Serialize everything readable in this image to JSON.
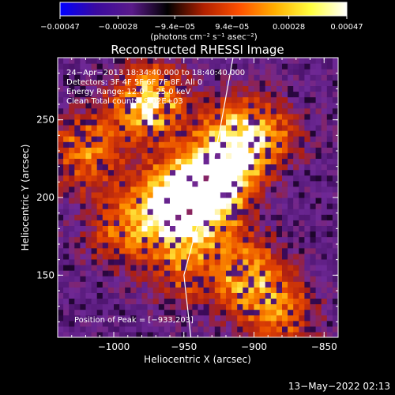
{
  "chart_data": {
    "type": "heatmap",
    "title": "Reconstructed RHESSI Image",
    "xlabel": "Heliocentric X (arcsec)",
    "ylabel": "Heliocentric Y (arcsec)",
    "xlim": [
      -1040,
      -840
    ],
    "ylim": [
      110,
      290
    ],
    "x_ticks": [
      -1000,
      -950,
      -900,
      -850
    ],
    "x_tick_labels": [
      "−1000",
      "−950",
      "−900",
      "−850"
    ],
    "y_ticks": [
      150,
      200,
      250
    ],
    "y_tick_labels": [
      "150",
      "200",
      "250"
    ],
    "colorbar": {
      "range": [
        -0.00047,
        0.00047
      ],
      "ticks": [
        -0.00047,
        -0.00028,
        -9.4e-05,
        9.4e-05,
        0.00028,
        0.00047
      ],
      "tick_labels": [
        "−0.00047",
        "−0.00028",
        "−9.4e−05",
        "9.4e−05",
        "0.00028",
        "0.00047"
      ],
      "unit_label": "(photons cm⁻² s⁻¹ asec⁻²)",
      "colors": [
        "#0000ff",
        "#3a0aa0",
        "#5a1a8a",
        "#000000",
        "#b02000",
        "#ff5000",
        "#ffb000",
        "#ffff40",
        "#ffffff"
      ]
    },
    "annotations": {
      "time": "24−Apr−2013 18:34:40.000 to 18:40:40.000",
      "detectors": "Detectors: 3F 4F 5F 6F 7F 8F, All 0",
      "energy": "Energy Range: 12.0 − 25.0 keV",
      "clean": "Clean      Total counts: 9.02E+03",
      "peak": "Position of Peak = [−933,203]"
    },
    "peak_position": [
      -933,
      203
    ],
    "sources": [
      {
        "x": -933,
        "y": 203,
        "intensity": 1.0
      },
      {
        "x": -975,
        "y": 260,
        "intensity": 0.7
      },
      {
        "x": -915,
        "y": 235,
        "intensity": 0.65
      },
      {
        "x": -960,
        "y": 195,
        "intensity": 0.7
      },
      {
        "x": -905,
        "y": 150,
        "intensity": 0.55
      },
      {
        "x": -1020,
        "y": 230,
        "intensity": 0.45
      },
      {
        "x": -995,
        "y": 180,
        "intensity": 0.4
      },
      {
        "x": -880,
        "y": 125,
        "intensity": 0.4
      },
      {
        "x": -950,
        "y": 155,
        "intensity": 0.35
      },
      {
        "x": -890,
        "y": 240,
        "intensity": 0.35
      }
    ],
    "limb_curve": [
      [
        -945,
        110
      ],
      [
        -950,
        150
      ],
      [
        -935,
        200
      ],
      [
        -925,
        240
      ],
      [
        -915,
        290
      ]
    ],
    "footer": "13−May−2022 02:13"
  }
}
